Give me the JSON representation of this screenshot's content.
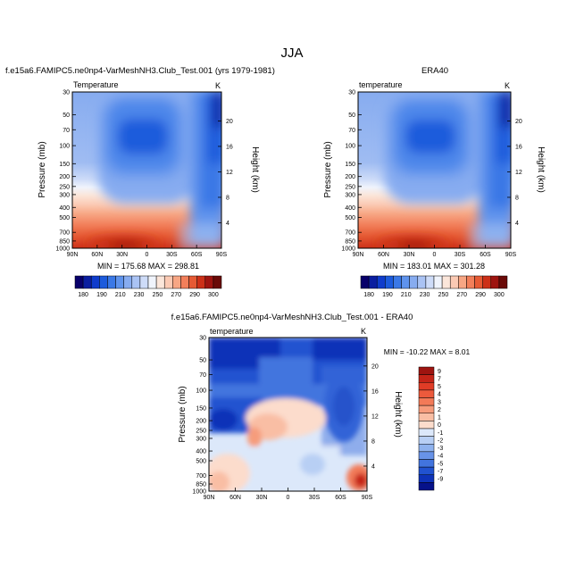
{
  "figure_title": "JJA",
  "chart_data": [
    {
      "type": "heatmap",
      "title": "f.e15a6.FAMIPC5.ne0np4-VarMeshNH3.Club_Test.001 (yrs 1979-1981)",
      "left_label": "Temperature",
      "unit": "K",
      "ylabel": "Pressure (mb)",
      "y2label": "Height (km)",
      "x_ticks": [
        "90N",
        "60N",
        "30N",
        "0",
        "30S",
        "60S",
        "90S"
      ],
      "x_values": [
        90,
        60,
        30,
        0,
        -30,
        -60,
        -90
      ],
      "xlim": [
        90,
        -90
      ],
      "y_ticks": [
        "30",
        "50",
        "70",
        "100",
        "150",
        "200",
        "250",
        "300",
        "400",
        "500",
        "700",
        "850",
        "1000"
      ],
      "y_values": [
        30,
        50,
        70,
        100,
        150,
        200,
        250,
        300,
        400,
        500,
        700,
        850,
        1000
      ],
      "ylim": [
        30,
        1000
      ],
      "y_scale": "log",
      "height_ticks": [
        "20",
        "16",
        "12",
        "8",
        "4"
      ],
      "height_values": [
        20,
        16,
        12,
        8,
        4
      ],
      "stats": "MIN = 175.68   MAX = 298.81",
      "colorbar": {
        "labels": [
          "180",
          "190",
          "210",
          "230",
          "250",
          "270",
          "290",
          "300"
        ],
        "colors": [
          "#08006a",
          "#0a1ea0",
          "#0f3ccc",
          "#1c5bdc",
          "#3a78e6",
          "#5f93ec",
          "#87acf0",
          "#aac3f4",
          "#cedcf8",
          "#f0f4fc",
          "#fbe6da",
          "#fbcab4",
          "#f7a684",
          "#f27f5a",
          "#e65a34",
          "#cc3018",
          "#9e1410",
          "#6a0a08"
        ]
      }
    },
    {
      "type": "heatmap",
      "title": "ERA40",
      "left_label": "temperature",
      "unit": "K",
      "ylabel": "Pressure (mb)",
      "y2label": "Height (km)",
      "x_ticks": [
        "90N",
        "60N",
        "30N",
        "0",
        "30S",
        "60S",
        "90S"
      ],
      "x_values": [
        90,
        60,
        30,
        0,
        -30,
        -60,
        -90
      ],
      "xlim": [
        90,
        -90
      ],
      "y_ticks": [
        "30",
        "50",
        "70",
        "100",
        "150",
        "200",
        "250",
        "300",
        "400",
        "500",
        "700",
        "850",
        "1000"
      ],
      "y_values": [
        30,
        50,
        70,
        100,
        150,
        200,
        250,
        300,
        400,
        500,
        700,
        850,
        1000
      ],
      "ylim": [
        30,
        1000
      ],
      "y_scale": "log",
      "height_ticks": [
        "20",
        "16",
        "12",
        "8",
        "4"
      ],
      "height_values": [
        20,
        16,
        12,
        8,
        4
      ],
      "stats": "MIN = 183.01   MAX = 301.28",
      "colorbar": {
        "labels": [
          "180",
          "190",
          "210",
          "230",
          "250",
          "270",
          "290",
          "300"
        ],
        "colors": [
          "#08006a",
          "#0a1ea0",
          "#0f3ccc",
          "#1c5bdc",
          "#3a78e6",
          "#5f93ec",
          "#87acf0",
          "#aac3f4",
          "#cedcf8",
          "#f0f4fc",
          "#fbe6da",
          "#fbcab4",
          "#f7a684",
          "#f27f5a",
          "#e65a34",
          "#cc3018",
          "#9e1410",
          "#6a0a08"
        ]
      }
    },
    {
      "type": "heatmap",
      "title": "f.e15a6.FAMIPC5.ne0np4-VarMeshNH3.Club_Test.001 - ERA40",
      "left_label": "temperature",
      "unit": "K",
      "ylabel": "Pressure (mb)",
      "y2label": "Height (km)",
      "x_ticks": [
        "90N",
        "60N",
        "30N",
        "0",
        "30S",
        "60S",
        "90S"
      ],
      "x_values": [
        90,
        60,
        30,
        0,
        -30,
        -60,
        -90
      ],
      "xlim": [
        90,
        -90
      ],
      "y_ticks": [
        "30",
        "50",
        "70",
        "100",
        "150",
        "200",
        "250",
        "300",
        "400",
        "500",
        "700",
        "850",
        "1000"
      ],
      "y_values": [
        30,
        50,
        70,
        100,
        150,
        200,
        250,
        300,
        400,
        500,
        700,
        850,
        1000
      ],
      "ylim": [
        30,
        1000
      ],
      "y_scale": "log",
      "height_ticks": [
        "20",
        "16",
        "12",
        "8",
        "4"
      ],
      "height_values": [
        20,
        16,
        12,
        8,
        4
      ],
      "stats": "MIN = -10.22   MAX =   8.01",
      "colorbar": {
        "labels": [
          "9",
          "7",
          "5",
          "4",
          "3",
          "2",
          "1",
          "0",
          "-1",
          "-2",
          "-3",
          "-4",
          "-5",
          "-7",
          "-9"
        ],
        "colors": [
          "#9e1410",
          "#c42418",
          "#e03c26",
          "#ec5a3c",
          "#f27a58",
          "#f69c7c",
          "#f9bea4",
          "#fcdccc",
          "#dce8fa",
          "#b8cff4",
          "#8fb2ee",
          "#6893e8",
          "#4274de",
          "#2152d0",
          "#0e32b8",
          "#06128a"
        ]
      }
    }
  ]
}
